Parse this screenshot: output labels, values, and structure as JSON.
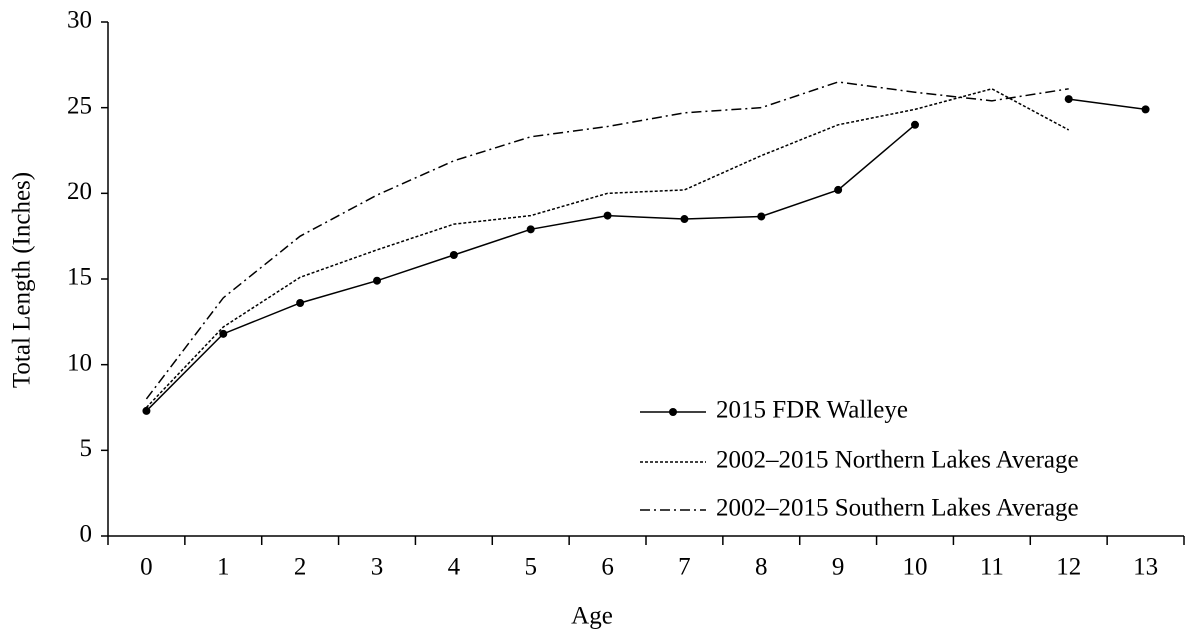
{
  "chart_data": {
    "type": "line",
    "y_label": "Total Length (Inches)",
    "x_label": "Age",
    "categories": [
      "0",
      "1",
      "2",
      "3",
      "4",
      "5",
      "6",
      "7",
      "8",
      "9",
      "10",
      "11",
      "12",
      "13"
    ],
    "ylim": [
      0,
      30
    ],
    "yticks": [
      0,
      5,
      10,
      15,
      20,
      25,
      30
    ],
    "legend": "lower-right",
    "series": [
      {
        "name": "2015 FDR Walleye",
        "color": "#000000",
        "dash": "solid",
        "marker": true,
        "values": [
          7.3,
          11.8,
          13.6,
          14.9,
          16.4,
          17.9,
          18.7,
          18.5,
          18.65,
          20.2,
          24.0,
          null,
          25.5,
          24.9
        ]
      },
      {
        "name": "2002–2015 Northern Lakes Average",
        "color": "#000000",
        "dash": "dotted",
        "marker": false,
        "values": [
          7.5,
          12.2,
          15.1,
          16.7,
          18.2,
          18.7,
          20.0,
          20.2,
          22.2,
          24.0,
          24.9,
          26.1,
          23.7,
          null
        ]
      },
      {
        "name": "2002–2015 Southern Lakes Average",
        "color": "#000000",
        "dash": "dash-dot",
        "marker": false,
        "values": [
          8.0,
          13.9,
          17.5,
          19.9,
          21.9,
          23.3,
          23.9,
          24.7,
          25.0,
          26.5,
          25.9,
          25.4,
          26.1,
          null
        ]
      }
    ]
  }
}
